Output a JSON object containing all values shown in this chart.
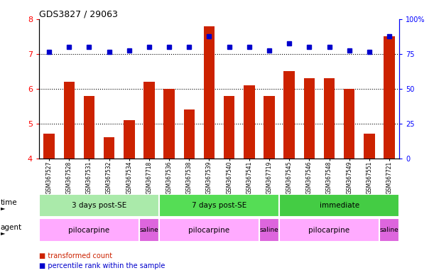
{
  "title": "GDS3827 / 29063",
  "samples": [
    "GSM367527",
    "GSM367528",
    "GSM367531",
    "GSM367532",
    "GSM367534",
    "GSM367718",
    "GSM367536",
    "GSM367538",
    "GSM367539",
    "GSM367540",
    "GSM367541",
    "GSM367719",
    "GSM367545",
    "GSM367546",
    "GSM367548",
    "GSM367549",
    "GSM367551",
    "GSM367721"
  ],
  "bar_values": [
    4.7,
    6.2,
    5.8,
    4.6,
    5.1,
    6.2,
    6.0,
    5.4,
    7.8,
    5.8,
    6.1,
    5.8,
    6.5,
    6.3,
    6.3,
    6.0,
    4.7,
    7.5
  ],
  "dot_values": [
    7.05,
    7.2,
    7.2,
    7.05,
    7.1,
    7.2,
    7.2,
    7.2,
    7.5,
    7.2,
    7.2,
    7.1,
    7.3,
    7.2,
    7.2,
    7.1,
    7.05,
    7.5
  ],
  "bar_color": "#cc2200",
  "dot_color": "#0000cc",
  "ylim_left": [
    4.0,
    8.0
  ],
  "ylim_right": [
    0,
    100
  ],
  "yticks_left": [
    4,
    5,
    6,
    7,
    8
  ],
  "yticks_right": [
    0,
    25,
    50,
    75,
    100
  ],
  "grid_values": [
    5.0,
    6.0,
    7.0
  ],
  "time_groups": [
    {
      "label": "3 days post-SE",
      "start": 0,
      "end": 6,
      "color": "#aaeaaa"
    },
    {
      "label": "7 days post-SE",
      "start": 6,
      "end": 12,
      "color": "#55dd55"
    },
    {
      "label": "immediate",
      "start": 12,
      "end": 18,
      "color": "#44cc44"
    }
  ],
  "agent_groups": [
    {
      "label": "pilocarpine",
      "start": 0,
      "end": 5,
      "color": "#ffaaff"
    },
    {
      "label": "saline",
      "start": 5,
      "end": 6,
      "color": "#dd66dd"
    },
    {
      "label": "pilocarpine",
      "start": 6,
      "end": 11,
      "color": "#ffaaff"
    },
    {
      "label": "saline",
      "start": 11,
      "end": 12,
      "color": "#dd66dd"
    },
    {
      "label": "pilocarpine",
      "start": 12,
      "end": 17,
      "color": "#ffaaff"
    },
    {
      "label": "saline",
      "start": 17,
      "end": 18,
      "color": "#dd66dd"
    }
  ],
  "legend_bar_label": "transformed count",
  "legend_dot_label": "percentile rank within the sample",
  "bar_bottom": 4.0
}
